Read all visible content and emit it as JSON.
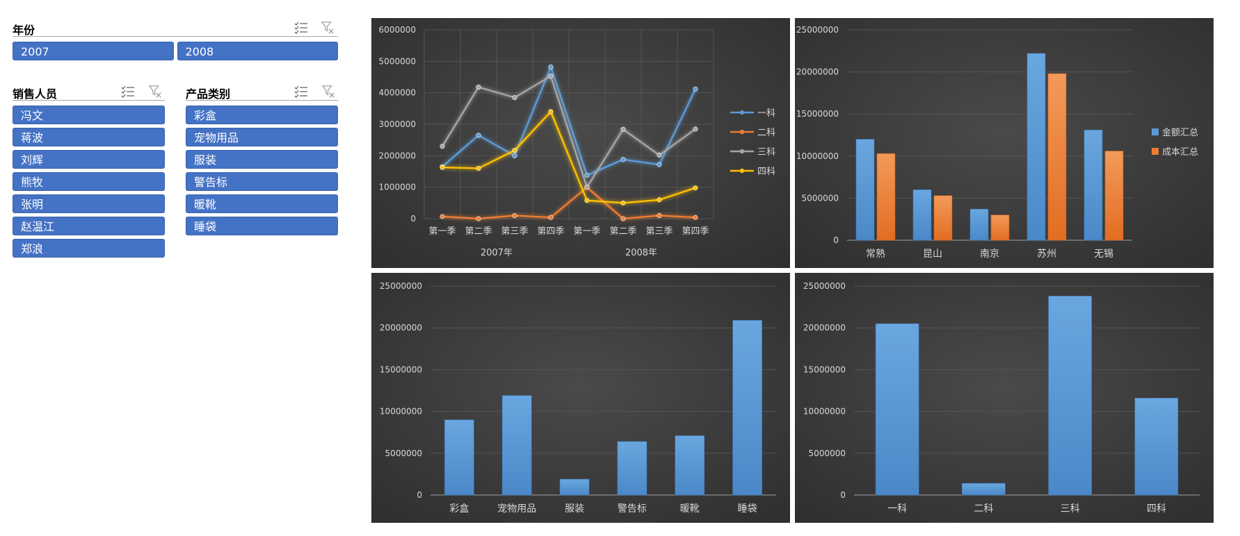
{
  "slicers": {
    "year": {
      "title": "年份",
      "items": [
        "2007",
        "2008"
      ]
    },
    "salesperson": {
      "title": "销售人员",
      "items": [
        "冯文",
        "蒋波",
        "刘辉",
        "熊牧",
        "张明",
        "赵温江",
        "郑浪"
      ]
    },
    "category": {
      "title": "产品类别",
      "items": [
        "彩盒",
        "宠物用品",
        "服装",
        "警告标",
        "暖靴",
        "睡袋"
      ]
    }
  },
  "colors": {
    "blue": "#5b9bd5",
    "orange": "#ed7d31",
    "gray": "#a5a5a5",
    "yellow": "#ffc000",
    "slicer": "#4472c4",
    "chart_bg": "#3a3a3a"
  },
  "chart_data": [
    {
      "type": "line",
      "x": [
        "第一季",
        "第二季",
        "第三季",
        "第四季",
        "第一季",
        "第二季",
        "第三季",
        "第四季"
      ],
      "x_groups": [
        {
          "label": "2007年",
          "span": 4
        },
        {
          "label": "2008年",
          "span": 4
        }
      ],
      "series": [
        {
          "name": "一科",
          "color": "#5b9bd5",
          "values": [
            1650000,
            2650000,
            2000000,
            4820000,
            1380000,
            1880000,
            1720000,
            4120000
          ]
        },
        {
          "name": "二科",
          "color": "#ed7d31",
          "values": [
            70000,
            0,
            100000,
            40000,
            1000000,
            0,
            100000,
            40000
          ]
        },
        {
          "name": "三科",
          "color": "#a5a5a5",
          "values": [
            2300000,
            4180000,
            3850000,
            4530000,
            1000000,
            2840000,
            2020000,
            2850000
          ]
        },
        {
          "name": "四科",
          "color": "#ffc000",
          "values": [
            1630000,
            1600000,
            2170000,
            3400000,
            580000,
            500000,
            600000,
            980000
          ]
        }
      ],
      "ylim": [
        0,
        6000000
      ],
      "yticks": [
        "0",
        "1000000",
        "2000000",
        "3000000",
        "4000000",
        "5000000",
        "6000000"
      ],
      "grid": true,
      "legend": "right"
    },
    {
      "type": "bar",
      "categories": [
        "常熟",
        "昆山",
        "南京",
        "苏州",
        "无锡"
      ],
      "series": [
        {
          "name": "金额汇总",
          "color": "#5b9bd5",
          "values": [
            12000000,
            6000000,
            3700000,
            22200000,
            13100000
          ]
        },
        {
          "name": "成本汇总",
          "color": "#ed7d31",
          "values": [
            10300000,
            5300000,
            3000000,
            19800000,
            10600000
          ]
        }
      ],
      "ylim": [
        0,
        25000000
      ],
      "yticks": [
        "0",
        "5000000",
        "10000000",
        "15000000",
        "20000000",
        "25000000"
      ],
      "grid": true,
      "legend": "right"
    },
    {
      "type": "bar",
      "categories": [
        "彩盒",
        "宠物用品",
        "服装",
        "警告标",
        "暖靴",
        "睡袋"
      ],
      "series": [
        {
          "color": "#5b9bd5",
          "values": [
            9000000,
            11900000,
            1900000,
            6400000,
            7100000,
            20900000
          ]
        }
      ],
      "ylim": [
        0,
        25000000
      ],
      "yticks": [
        "0",
        "5000000",
        "10000000",
        "15000000",
        "20000000",
        "25000000"
      ],
      "grid": true
    },
    {
      "type": "bar",
      "categories": [
        "一科",
        "二科",
        "三科",
        "四科"
      ],
      "series": [
        {
          "color": "#5b9bd5",
          "values": [
            20500000,
            1400000,
            23800000,
            11600000
          ]
        }
      ],
      "ylim": [
        0,
        25000000
      ],
      "yticks": [
        "0",
        "5000000",
        "10000000",
        "15000000",
        "20000000",
        "25000000"
      ],
      "grid": true
    }
  ]
}
